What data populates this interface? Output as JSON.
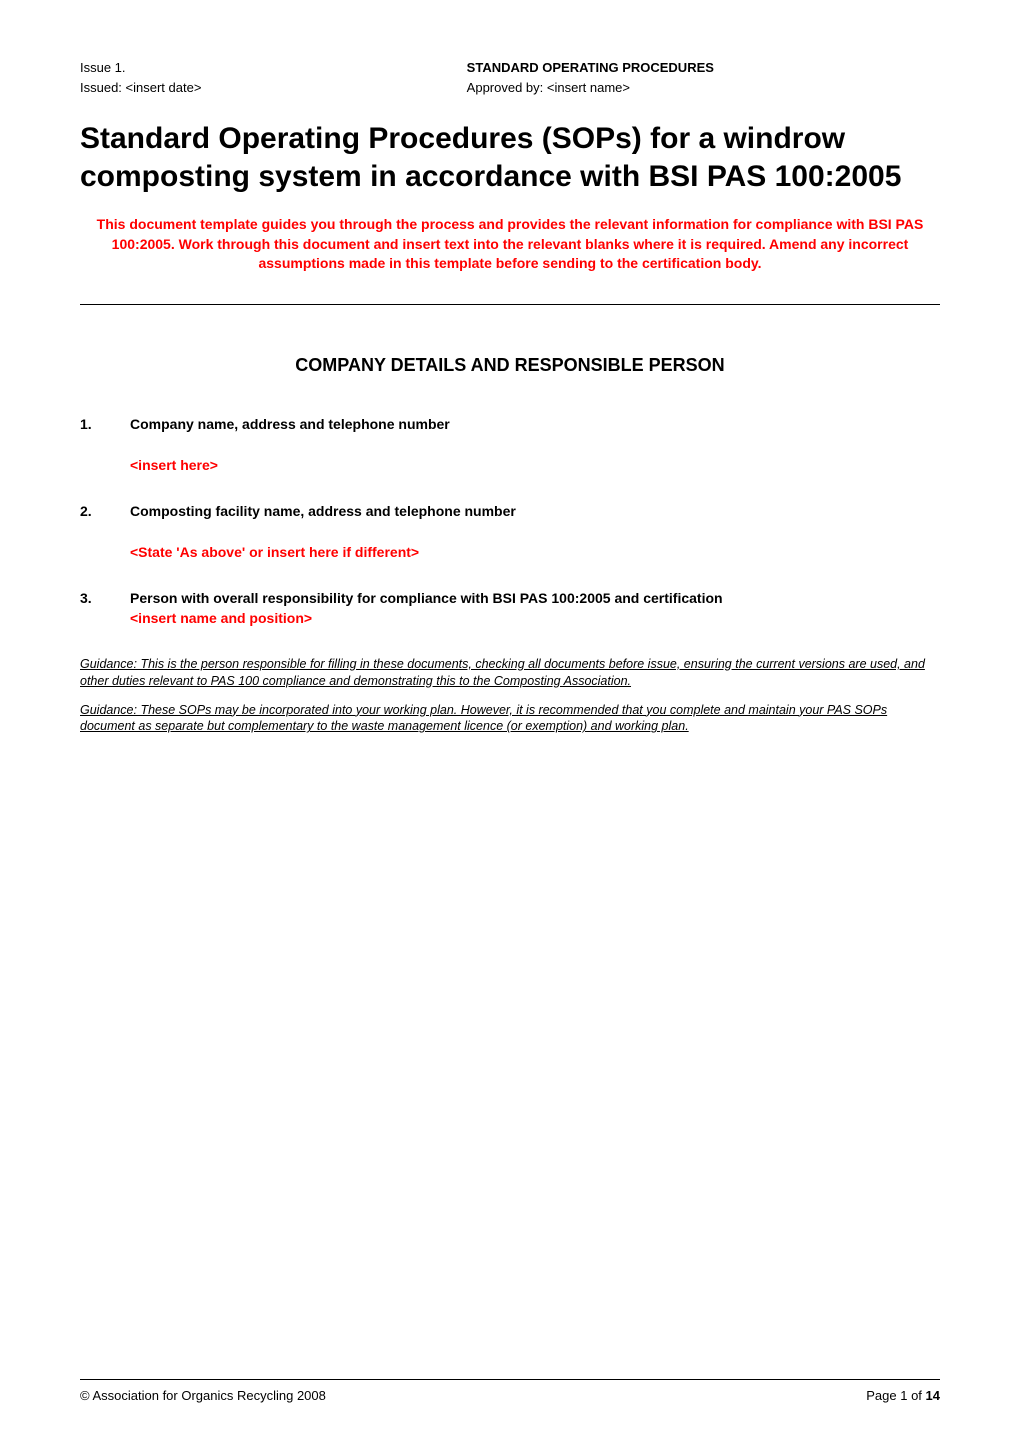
{
  "header": {
    "issue_label": "Issue 1.",
    "issued_label": "Issued: <insert date>",
    "title": "STANDARD OPERATING PROCEDURES",
    "approved_label": "Approved by: <insert name>"
  },
  "main_title": "Standard Operating Procedures (SOPs) for a windrow composting system in accordance with BSI PAS 100:2005",
  "intro": "This document template guides you through the process and provides the relevant information for compliance with BSI PAS 100:2005.  Work through this document and insert text into the relevant blanks where it is required.  Amend any incorrect assumptions made in this template before sending to the certification body.",
  "section_title": "COMPANY DETAILS AND RESPONSIBLE PERSON",
  "items": {
    "item1": {
      "number": "1.",
      "heading": "Company name, address and telephone number",
      "placeholder": "<insert here>"
    },
    "item2": {
      "number": "2.",
      "heading": "Composting facility name, address and telephone number",
      "placeholder": "<State 'As above' or insert here if different>"
    },
    "item3": {
      "number": "3.",
      "heading": "Person with overall responsibility for compliance with BSI PAS 100:2005 and certification",
      "placeholder": "<insert name and position>"
    }
  },
  "guidance1": "Guidance: This is the person responsible for filling in these documents, checking all documents before issue, ensuring the current versions are used, and other duties relevant to PAS 100 compliance and demonstrating this to the Composting Association.",
  "guidance2": "Guidance: These SOPs may be incorporated into your working plan.  However, it is recommended that you complete and maintain your PAS SOPs document as separate but complementary to the waste management licence (or exemption) and working plan.   ",
  "footer": {
    "copyright": "© Association for Organics Recycling 2008",
    "page_prefix": "Page 1 of ",
    "page_total": "14"
  },
  "colors": {
    "red": "#ff0000",
    "black": "#000000",
    "background": "#ffffff"
  }
}
